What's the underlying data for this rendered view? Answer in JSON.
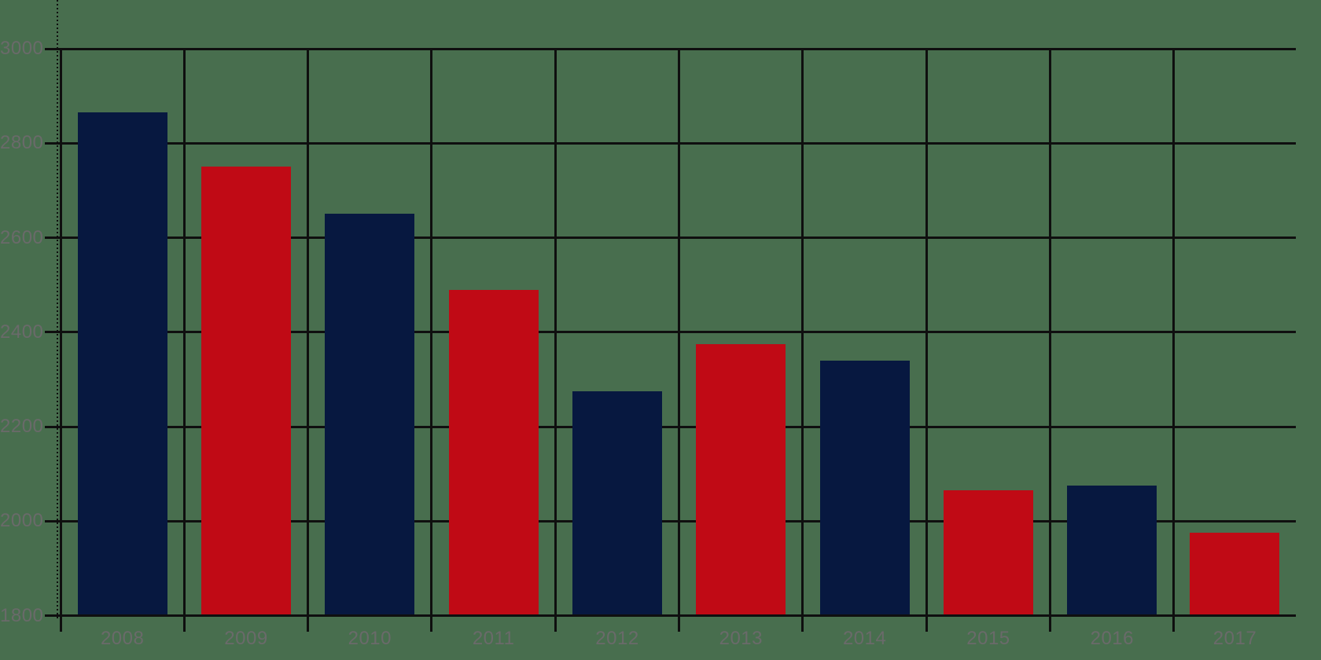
{
  "chart_data": {
    "type": "bar",
    "categories": [
      "2008",
      "2009",
      "2010",
      "2011",
      "2012",
      "2013",
      "2014",
      "2015",
      "2016",
      "2017"
    ],
    "values": [
      2865,
      2750,
      2650,
      2490,
      2275,
      2375,
      2340,
      2065,
      2075,
      1975
    ],
    "bar_colors": [
      "#071840",
      "#c00a15",
      "#071840",
      "#c00a15",
      "#071840",
      "#c00a15",
      "#071840",
      "#c00a15",
      "#071840",
      "#c00a15"
    ],
    "ylim": [
      1800,
      3000
    ],
    "ytick_step": 200,
    "yticks": [
      1800,
      2000,
      2200,
      2400,
      2600,
      2800,
      3000
    ],
    "ytick_labels": [
      "1800",
      "2000",
      "2200",
      "2400",
      "2600",
      "2800",
      "3000"
    ],
    "xtick_labels": [
      "2008",
      "2009",
      "2010",
      "2011",
      "2012",
      "2013",
      "2014",
      "2015",
      "2016",
      "2017"
    ],
    "grid": "both",
    "legend_position": "none"
  },
  "colors": {
    "background": "#486e4e",
    "bar_navy": "#071840",
    "bar_red": "#c00a15",
    "grid_line": "#0f0f0f",
    "tick_label": "#6a6a6a"
  }
}
